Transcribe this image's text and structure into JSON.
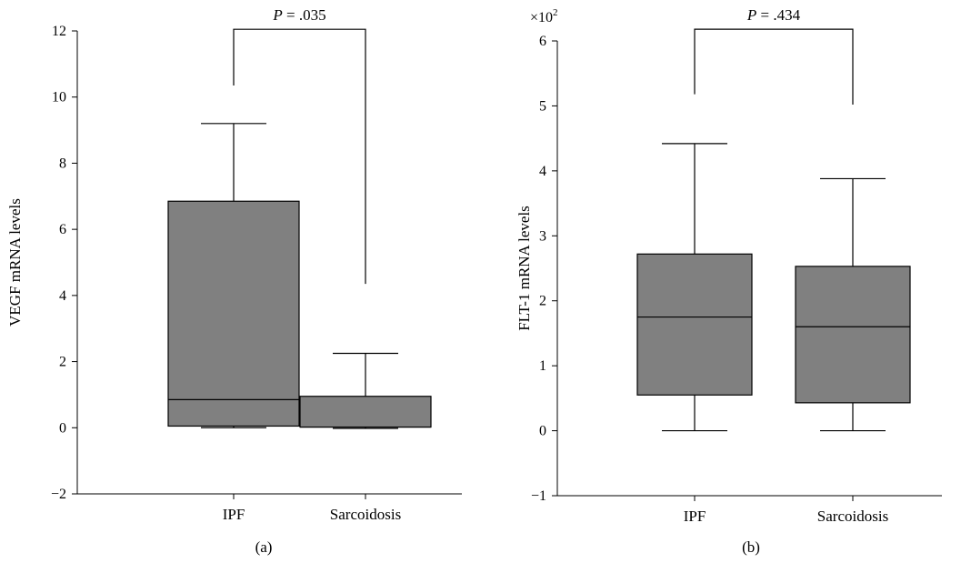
{
  "chart_data": [
    {
      "type": "box",
      "panel_label": "(a)",
      "ylabel": "VEGF mRNA levels",
      "ylim": [
        -2,
        12
      ],
      "yticks": [
        -2,
        0,
        2,
        4,
        6,
        8,
        10,
        12
      ],
      "yticks_text": [
        "−2",
        "0",
        "2",
        "4",
        "6",
        "8",
        "10",
        "12"
      ],
      "y_exponent": "",
      "categories": [
        "IPF",
        "Sarcoidosis"
      ],
      "boxes": [
        {
          "category": "IPF",
          "min": 0.0,
          "q1": 0.05,
          "median": 0.85,
          "q3": 6.85,
          "max": 9.2
        },
        {
          "category": "Sarcoidosis",
          "min": -0.02,
          "q1": 0.02,
          "median": 0.02,
          "q3": 0.95,
          "max": 2.25
        }
      ],
      "bracket": {
        "label_prefix": "P",
        "label_value": " = .035",
        "top": 12.05,
        "left_end": 10.35,
        "right_end": 4.35
      }
    },
    {
      "type": "box",
      "panel_label": "(b)",
      "ylabel": "FLT-1 mRNA levels",
      "ylim": [
        -1,
        6
      ],
      "yticks": [
        -1,
        0,
        1,
        2,
        3,
        4,
        5,
        6
      ],
      "yticks_text": [
        "−1",
        "0",
        "1",
        "2",
        "3",
        "4",
        "5",
        "6"
      ],
      "y_exponent": "×10",
      "y_exponent_power": "2",
      "categories": [
        "IPF",
        "Sarcoidosis"
      ],
      "boxes": [
        {
          "category": "IPF",
          "min": 0.0,
          "q1": 0.55,
          "median": 1.75,
          "q3": 2.72,
          "max": 4.42
        },
        {
          "category": "Sarcoidosis",
          "min": 0.0,
          "q1": 0.43,
          "median": 1.6,
          "q3": 2.53,
          "max": 3.88
        }
      ],
      "bracket": {
        "label_prefix": "P",
        "label_value": " = .434",
        "top": 6.18,
        "left_end": 5.18,
        "right_end": 5.02
      }
    }
  ]
}
